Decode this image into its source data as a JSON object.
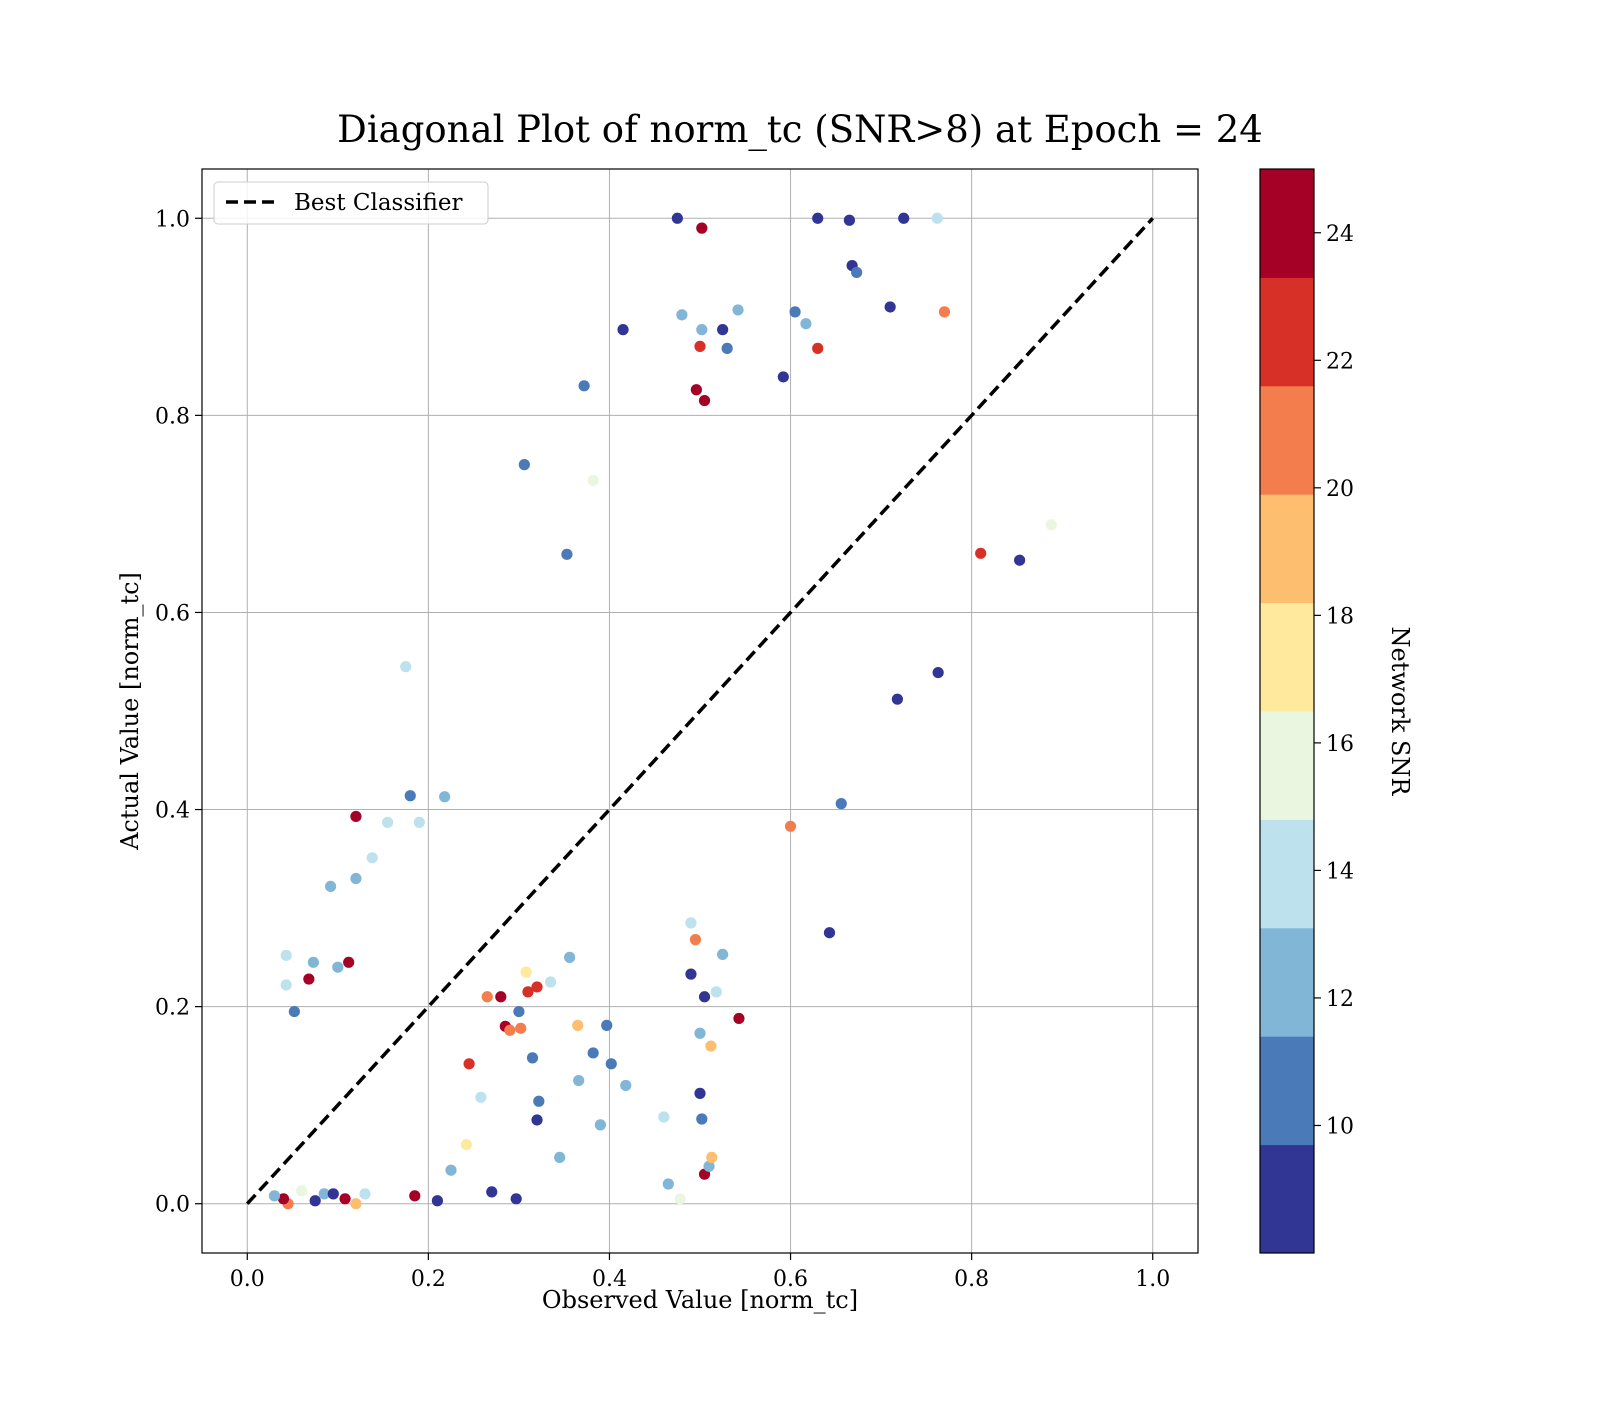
{
  "chart_data": {
    "type": "scatter",
    "title": "Diagonal Plot of norm_tc (SNR>8) at Epoch = 24",
    "xlabel": "Observed Value [norm_tc]",
    "ylabel": "Actual Value [norm_tc]",
    "xlim": [
      -0.05,
      1.05
    ],
    "ylim": [
      -0.05,
      1.05
    ],
    "xticks": [
      0.0,
      0.2,
      0.4,
      0.6,
      0.8,
      1.0
    ],
    "yticks": [
      0.0,
      0.2,
      0.4,
      0.6,
      0.8,
      1.0
    ],
    "xtick_labels": [
      "0.0",
      "0.2",
      "0.4",
      "0.6",
      "0.8",
      "1.0"
    ],
    "ytick_labels": [
      "0.0",
      "0.2",
      "0.4",
      "0.6",
      "0.8",
      "1.0"
    ],
    "grid": true,
    "legend": {
      "position": "upper-left",
      "entries": [
        "Best Classifier"
      ]
    },
    "reference_line": {
      "name": "Best Classifier",
      "style": "dashed",
      "color": "#000000",
      "x": [
        0.0,
        1.0
      ],
      "y": [
        0.0,
        1.0
      ]
    },
    "colorbar": {
      "label": "Network SNR",
      "range": [
        8,
        25
      ],
      "ticks": [
        10,
        12,
        14,
        16,
        18,
        20,
        22,
        24
      ],
      "tick_labels": [
        "10",
        "12",
        "14",
        "16",
        "18",
        "20",
        "22",
        "24"
      ],
      "colormap": "RdYlBu_r",
      "bins": 10,
      "colors": [
        "#313695",
        "#4a7ab7",
        "#82b6d6",
        "#bde2ed",
        "#ebf6e1",
        "#fee99d",
        "#fdbe70",
        "#f47d4d",
        "#d73027",
        "#a50026"
      ]
    },
    "series": [
      {
        "point_format": [
          "x",
          "y",
          "snr"
        ],
        "points": [
          [
            0.475,
            1.0,
            9
          ],
          [
            0.502,
            0.99,
            24
          ],
          [
            0.63,
            1.0,
            9
          ],
          [
            0.665,
            0.998,
            9
          ],
          [
            0.725,
            1.0,
            9
          ],
          [
            0.762,
            1.0,
            14
          ],
          [
            0.415,
            0.887,
            9
          ],
          [
            0.48,
            0.902,
            12
          ],
          [
            0.502,
            0.887,
            12
          ],
          [
            0.525,
            0.887,
            9
          ],
          [
            0.542,
            0.907,
            12
          ],
          [
            0.53,
            0.868,
            11
          ],
          [
            0.5,
            0.87,
            23
          ],
          [
            0.605,
            0.905,
            11
          ],
          [
            0.617,
            0.893,
            12
          ],
          [
            0.63,
            0.868,
            22
          ],
          [
            0.668,
            0.952,
            9
          ],
          [
            0.673,
            0.945,
            10
          ],
          [
            0.71,
            0.91,
            9
          ],
          [
            0.372,
            0.83,
            11
          ],
          [
            0.496,
            0.826,
            24
          ],
          [
            0.505,
            0.815,
            24
          ],
          [
            0.306,
            0.75,
            11
          ],
          [
            0.353,
            0.659,
            11
          ],
          [
            0.382,
            0.734,
            16
          ],
          [
            0.592,
            0.839,
            9
          ],
          [
            0.77,
            0.905,
            21
          ],
          [
            0.175,
            0.545,
            14
          ],
          [
            0.643,
            0.275,
            9
          ],
          [
            0.656,
            0.406,
            11
          ],
          [
            0.6,
            0.383,
            20
          ],
          [
            0.763,
            0.539,
            9
          ],
          [
            0.718,
            0.512,
            9
          ],
          [
            0.853,
            0.653,
            9
          ],
          [
            0.81,
            0.66,
            23
          ],
          [
            0.888,
            0.689,
            16
          ],
          [
            0.478,
            0.005,
            16
          ],
          [
            0.465,
            0.02,
            12
          ],
          [
            0.297,
            0.005,
            9
          ],
          [
            0.27,
            0.012,
            9
          ],
          [
            0.21,
            0.003,
            9
          ],
          [
            0.505,
            0.03,
            24
          ],
          [
            0.51,
            0.038,
            12
          ],
          [
            0.513,
            0.047,
            19
          ],
          [
            0.502,
            0.086,
            10
          ],
          [
            0.46,
            0.088,
            14
          ],
          [
            0.5,
            0.112,
            9
          ],
          [
            0.39,
            0.08,
            12
          ],
          [
            0.345,
            0.047,
            12
          ],
          [
            0.32,
            0.085,
            9
          ],
          [
            0.322,
            0.104,
            11
          ],
          [
            0.366,
            0.125,
            13
          ],
          [
            0.382,
            0.153,
            11
          ],
          [
            0.402,
            0.142,
            11
          ],
          [
            0.418,
            0.12,
            12
          ],
          [
            0.5,
            0.173,
            12
          ],
          [
            0.512,
            0.16,
            19
          ],
          [
            0.543,
            0.188,
            24
          ],
          [
            0.505,
            0.21,
            9
          ],
          [
            0.518,
            0.215,
            14
          ],
          [
            0.525,
            0.253,
            12
          ],
          [
            0.315,
            0.148,
            10
          ],
          [
            0.365,
            0.181,
            19
          ],
          [
            0.397,
            0.181,
            11
          ],
          [
            0.495,
            0.268,
            20
          ],
          [
            0.49,
            0.233,
            9
          ],
          [
            0.49,
            0.285,
            14
          ],
          [
            0.185,
            0.008,
            24
          ],
          [
            0.242,
            0.06,
            18
          ],
          [
            0.245,
            0.142,
            23
          ],
          [
            0.225,
            0.034,
            12
          ],
          [
            0.258,
            0.108,
            14
          ],
          [
            0.12,
            0.393,
            24
          ],
          [
            0.155,
            0.387,
            14
          ],
          [
            0.19,
            0.387,
            14
          ],
          [
            0.18,
            0.414,
            11
          ],
          [
            0.218,
            0.413,
            12
          ],
          [
            0.092,
            0.322,
            12
          ],
          [
            0.12,
            0.33,
            13
          ],
          [
            0.138,
            0.351,
            14
          ],
          [
            0.043,
            0.252,
            14
          ],
          [
            0.043,
            0.222,
            14
          ],
          [
            0.052,
            0.195,
            11
          ],
          [
            0.073,
            0.245,
            12
          ],
          [
            0.068,
            0.228,
            24
          ],
          [
            0.1,
            0.24,
            12
          ],
          [
            0.112,
            0.245,
            24
          ],
          [
            0.075,
            0.003,
            9
          ],
          [
            0.085,
            0.01,
            12
          ],
          [
            0.06,
            0.013,
            16
          ],
          [
            0.045,
            0.0,
            21
          ],
          [
            0.04,
            0.005,
            24
          ],
          [
            0.03,
            0.008,
            12
          ],
          [
            0.12,
            0.0,
            19
          ],
          [
            0.108,
            0.005,
            24
          ],
          [
            0.13,
            0.01,
            14
          ],
          [
            0.095,
            0.01,
            9
          ],
          [
            0.31,
            0.215,
            22
          ],
          [
            0.308,
            0.235,
            18
          ],
          [
            0.32,
            0.22,
            23
          ],
          [
            0.335,
            0.225,
            14
          ],
          [
            0.356,
            0.25,
            12
          ],
          [
            0.3,
            0.195,
            10
          ],
          [
            0.28,
            0.21,
            24
          ],
          [
            0.285,
            0.18,
            24
          ],
          [
            0.29,
            0.176,
            20
          ],
          [
            0.302,
            0.178,
            21
          ],
          [
            0.265,
            0.21,
            20
          ]
        ]
      }
    ]
  }
}
